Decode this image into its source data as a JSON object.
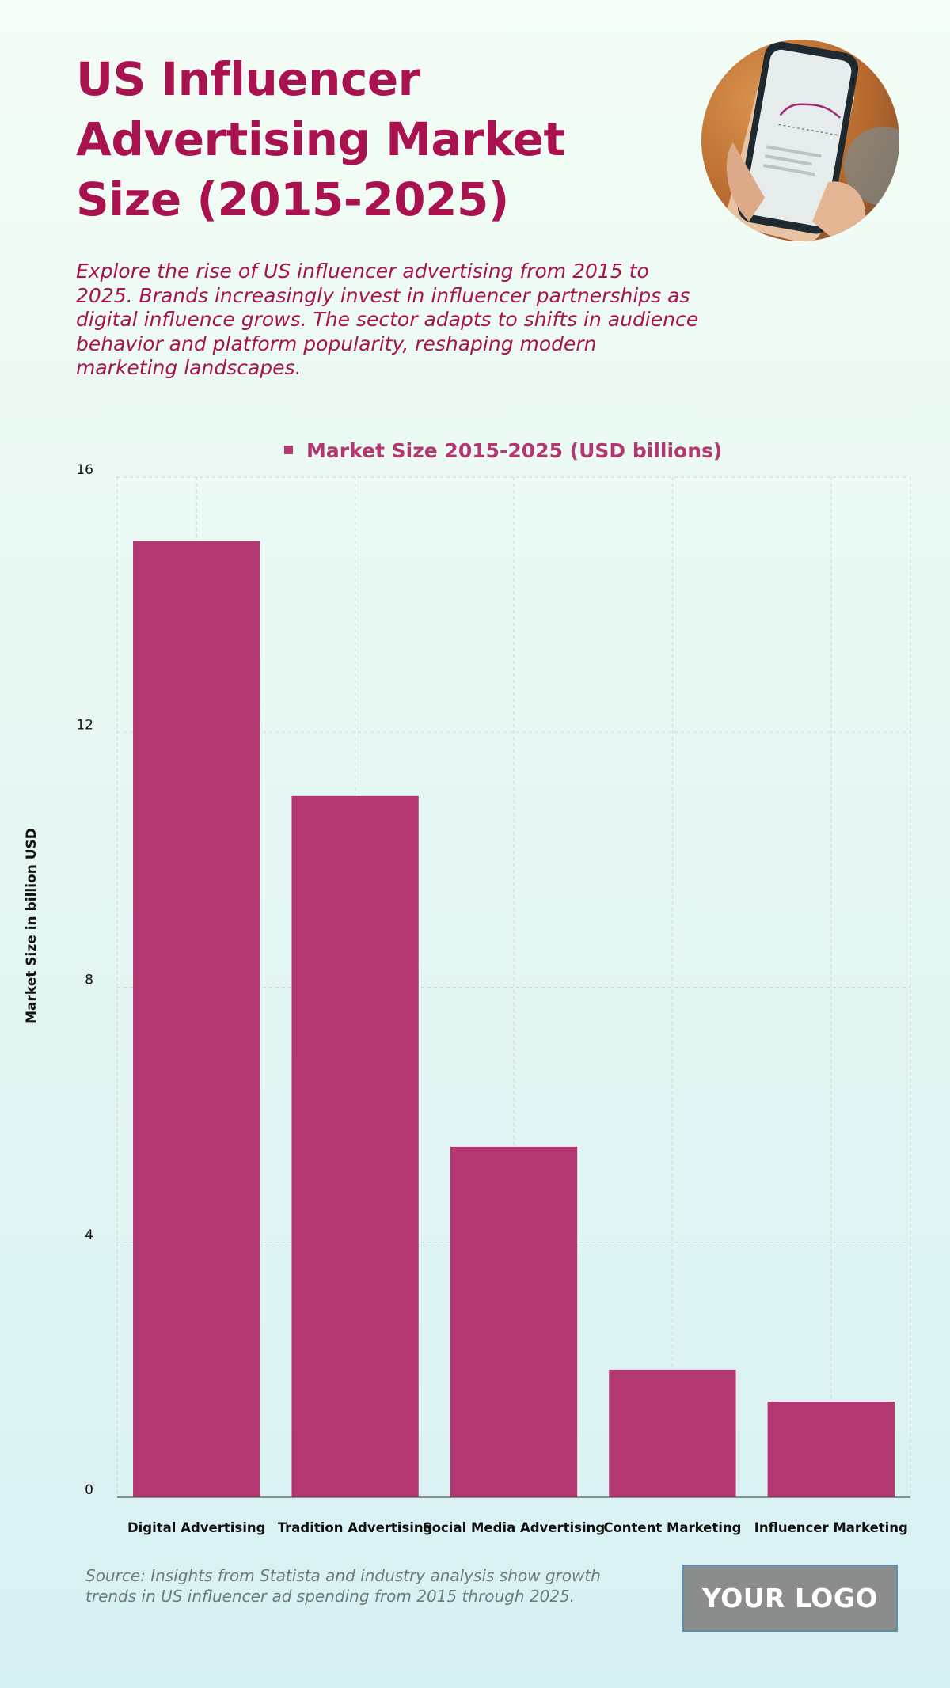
{
  "header": {
    "title": "US Influencer Advertising Market Size (2015-2025)",
    "subtitle": "Explore the rise of US influencer advertising from 2015 to 2025. Brands increasingly invest in influencer partnerships as digital influence grows. The sector adapts to shifts in audience behavior and platform popularity, reshaping modern marketing landscapes."
  },
  "image": {
    "icon": "phone-analytics-photo"
  },
  "chart_data": {
    "type": "bar",
    "categories": [
      "Digital Advertising",
      "Tradition Advertising",
      "Social Media Advertising",
      "Content Marketing",
      "Influencer Marketing"
    ],
    "series": [
      {
        "name": "Market Size 2015-2025 (USD billions)",
        "values": [
          15,
          11,
          5.5,
          2,
          1.5
        ]
      }
    ],
    "ylabel": "Market Size in billion USD",
    "xlabel": "",
    "ylim": [
      0,
      16
    ],
    "yticks": [
      0,
      4,
      8,
      12,
      16
    ],
    "grid": true,
    "legend": "top-center",
    "bar_color": "#b33871"
  },
  "footer": {
    "source": "Source: Insights from Statista and industry analysis show growth trends in US influencer ad spending from 2015 through 2025.",
    "logo": "YOUR LOGO"
  }
}
